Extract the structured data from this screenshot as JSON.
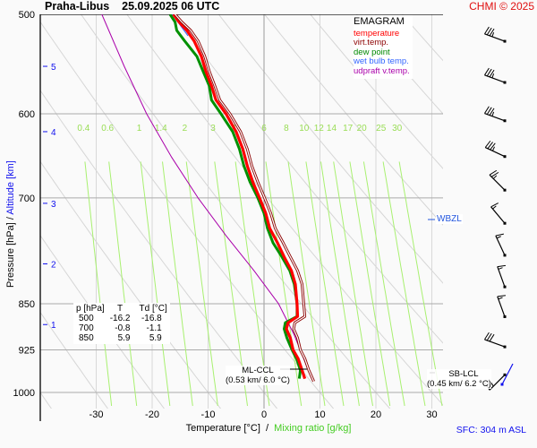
{
  "header": {
    "station": "Praha-Libus",
    "datetime": "25.09.2025 06 UTC",
    "copyright": "CHMI © 2025"
  },
  "legend": {
    "title": "EMAGRAM",
    "items": [
      {
        "label": "temperature",
        "color": "#ff0000"
      },
      {
        "label": "virt.temp.",
        "color": "#8b0000"
      },
      {
        "label": "dew point",
        "color": "#008800"
      },
      {
        "label": "wet bulb temp.",
        "color": "#3366ff"
      },
      {
        "label": "udpraft v.temp.",
        "color": "#aa00aa"
      }
    ]
  },
  "axes": {
    "ylabel_pressure": "Pressure [hPa]",
    "ylabel_sep": " / ",
    "ylabel_altitude": "Altitude [km]",
    "xlabel_temp": "Temperature [°C]",
    "xlabel_sep": "  /  ",
    "xlabel_mix": "Mixing ratio [g/kg]"
  },
  "surface": "SFC: 304 m ASL",
  "table": {
    "headers": [
      "p [hPa]",
      "T",
      "Td [°C]"
    ],
    "rows": [
      [
        "500",
        "-16.2",
        "-16.8"
      ],
      [
        "700",
        "-0.8",
        "-1.1"
      ],
      [
        "850",
        "5.9",
        "5.9"
      ]
    ]
  },
  "annotations": {
    "ml_ccl_label": "ML-CCL",
    "ml_ccl_value": "(0.53 km/ 6.0 °C)",
    "sb_lcl_label": "SB-LCL",
    "sb_lcl_value": "(0.45 km/ 6.2 °C)",
    "wbzl": "WBZL"
  },
  "chart_data": {
    "type": "line",
    "title": "Praha-Libus 25.09.2025 06 UTC",
    "chart_kind": "emagram",
    "xlabel": "Temperature [°C] / Mixing ratio [g/kg]",
    "ylabel": "Pressure [hPa] / Altitude [km]",
    "xlim": [
      -38,
      33
    ],
    "ylim_hpa": [
      1000,
      500
    ],
    "x_ticks": [
      -30,
      -20,
      -10,
      0,
      10,
      20,
      30
    ],
    "pressure_ticks": [
      500,
      600,
      700,
      850,
      925,
      1000
    ],
    "altitude_ticks_km": [
      {
        "km": 1,
        "hpa": 883
      },
      {
        "km": 2,
        "hpa": 790
      },
      {
        "km": 3,
        "hpa": 707
      },
      {
        "km": 4,
        "hpa": 620
      },
      {
        "km": 5,
        "hpa": 550
      }
    ],
    "mixing_ratio_labels": [
      "0.4",
      "0.6",
      "1",
      "1.4",
      "2",
      "3",
      "4",
      "6",
      "8",
      "10",
      "12",
      "14",
      "17",
      "20",
      "25",
      "30"
    ],
    "mixing_ratio_label_temps_at_625hpa": [
      -32.5,
      -28,
      -22.5,
      -19,
      -14.5,
      -9,
      -5.5,
      0,
      3.8,
      7,
      9.5,
      12,
      16,
      18.5,
      23,
      27.5
    ],
    "grid": true,
    "legend_position": "top-right",
    "series": [
      {
        "name": "temperature",
        "pressure": [
          500,
          507,
          515,
          525,
          540,
          555,
          570,
          585,
          600,
          620,
          640,
          660,
          680,
          700,
          720,
          740,
          760,
          780,
          800,
          820,
          850,
          870,
          880,
          890,
          905,
          925,
          940,
          960,
          975
        ],
        "values": [
          -16.2,
          -15.2,
          -13.8,
          -12.5,
          -11.2,
          -10.4,
          -9.4,
          -8.6,
          -6.8,
          -5.0,
          -3.8,
          -3.0,
          -2.0,
          -0.8,
          0.3,
          1.0,
          2.4,
          3.6,
          4.9,
          5.6,
          5.9,
          6.0,
          4.3,
          4.0,
          4.7,
          5.2,
          6.1,
          6.8,
          7.3
        ]
      },
      {
        "name": "virt.temp.",
        "pressure": [
          500,
          507,
          515,
          525,
          540,
          555,
          570,
          585,
          600,
          620,
          640,
          660,
          680,
          700,
          720,
          740,
          760,
          780,
          800,
          820,
          850,
          870,
          880,
          890,
          905,
          925,
          940,
          960,
          980
        ],
        "values": [
          -15.9,
          -14.7,
          -13.1,
          -11.8,
          -10.6,
          -9.8,
          -8.8,
          -7.9,
          -6.1,
          -4.2,
          -3.0,
          -2.2,
          -1.1,
          0.1,
          1.2,
          2.0,
          3.4,
          4.7,
          6.0,
          6.8,
          7.1,
          7.3,
          5.5,
          5.3,
          6.0,
          6.5,
          7.3,
          8.0,
          8.9
        ]
      },
      {
        "name": "dew point",
        "pressure": [
          500,
          507,
          515,
          525,
          540,
          555,
          570,
          585,
          600,
          620,
          640,
          660,
          680,
          700,
          720,
          740,
          760,
          780,
          800,
          820,
          850,
          870,
          880,
          890,
          905,
          925,
          940,
          960,
          975
        ],
        "values": [
          -16.8,
          -15.9,
          -15.6,
          -14.2,
          -12.0,
          -10.9,
          -9.8,
          -9.4,
          -7.7,
          -5.6,
          -4.4,
          -3.6,
          -2.5,
          -1.1,
          0.0,
          0.6,
          1.6,
          3.2,
          4.6,
          5.4,
          5.9,
          5.9,
          3.8,
          3.6,
          4.1,
          5.0,
          5.8,
          6.5,
          6.3
        ]
      },
      {
        "name": "wet bulb temp.",
        "pressure": [
          500,
          510,
          520
        ],
        "values": [
          -16.4,
          -15.0,
          -13.6
        ]
      },
      {
        "name": "udpraft v.temp.",
        "pressure": [
          500,
          550,
          600,
          650,
          700,
          750,
          800,
          850,
          900,
          950,
          975
        ],
        "values": [
          -29.0,
          -25.0,
          -21.0,
          -16.5,
          -11.8,
          -6.8,
          -1.8,
          2.6,
          5.4,
          7.5,
          8.5
        ]
      }
    ],
    "wind_barbs": [
      {
        "hpa": 510,
        "dir_deg": 290,
        "speed_kt": 35
      },
      {
        "hpa": 550,
        "dir_deg": 290,
        "speed_kt": 35
      },
      {
        "hpa": 590,
        "dir_deg": 290,
        "speed_kt": 35
      },
      {
        "hpa": 630,
        "dir_deg": 295,
        "speed_kt": 35
      },
      {
        "hpa": 670,
        "dir_deg": 315,
        "speed_kt": 25
      },
      {
        "hpa": 712,
        "dir_deg": 320,
        "speed_kt": 15
      },
      {
        "hpa": 755,
        "dir_deg": 335,
        "speed_kt": 15
      },
      {
        "hpa": 800,
        "dir_deg": 340,
        "speed_kt": 15
      },
      {
        "hpa": 845,
        "dir_deg": 340,
        "speed_kt": 15
      },
      {
        "hpa": 893,
        "dir_deg": 290,
        "speed_kt": 30
      },
      {
        "hpa": 940,
        "dir_deg": 225,
        "speed_kt": 30
      }
    ]
  }
}
